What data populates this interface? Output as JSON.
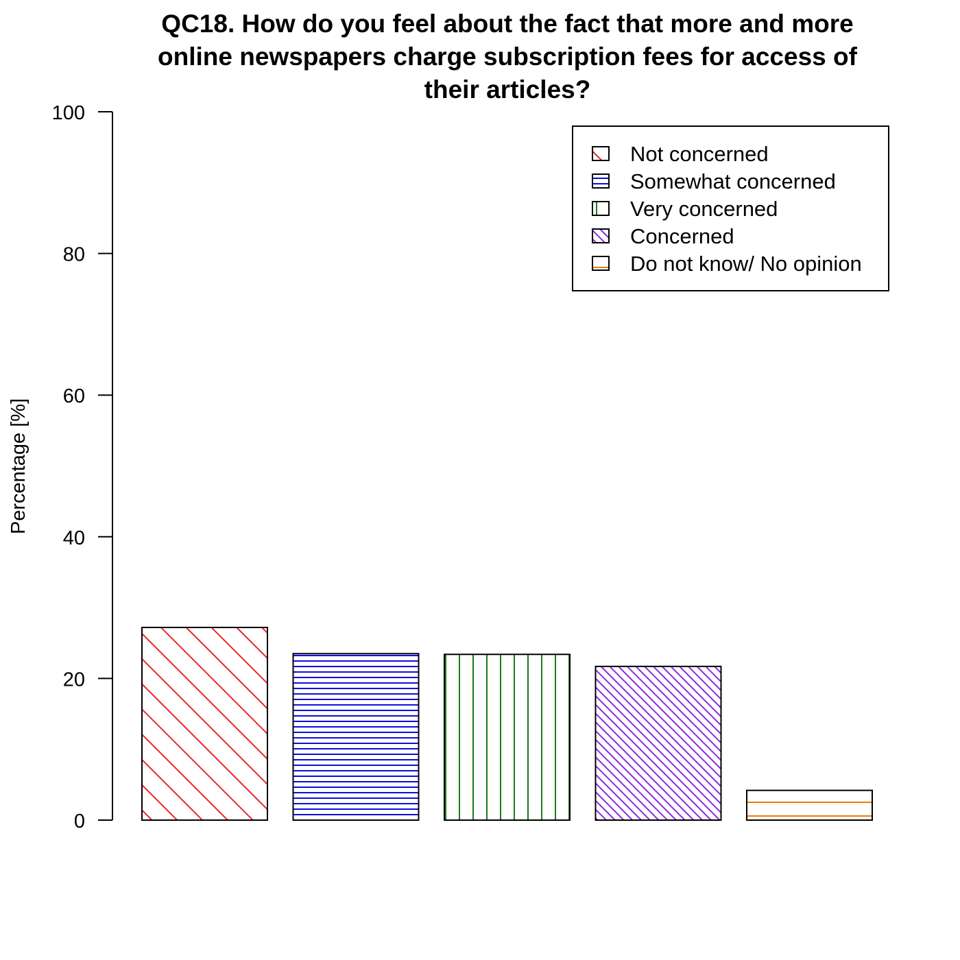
{
  "chart_data": {
    "type": "bar",
    "title_lines": [
      "QC18. How do you feel about the fact that more and more",
      "online newspapers charge subscription fees for access of",
      "their articles?"
    ],
    "xlabel": "",
    "ylabel": "Percentage [%]",
    "ylim": [
      0,
      100
    ],
    "yticks": [
      "0",
      "20",
      "40",
      "60",
      "80",
      "100"
    ],
    "categories": [
      "Not concerned",
      "Somewhat concerned",
      "Very concerned",
      "Concerned",
      "Do not know/ No opinion"
    ],
    "values": [
      27.2,
      23.5,
      23.4,
      21.7,
      4.2
    ],
    "legend_position": "top-right",
    "grid": false,
    "colors": [
      "#e8282a",
      "#0d0ddb",
      "#1a7a1a",
      "#8a2be2",
      "#e87a0a"
    ],
    "patterns": [
      "diagonal-sparse",
      "horizontal",
      "vertical",
      "diagonal-dense",
      "horizontal-sparse"
    ]
  }
}
